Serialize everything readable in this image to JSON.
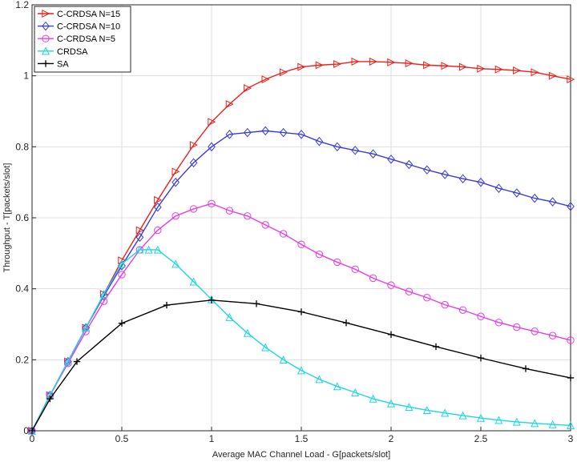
{
  "chart_data": {
    "type": "line",
    "title": "",
    "xlabel": "Average MAC Channel Load - G[packets/slot]",
    "ylabel": "Throughput - T[packets/slot]",
    "xlim": [
      0,
      3
    ],
    "ylim": [
      0,
      1.2
    ],
    "xticks": [
      0,
      0.5,
      1,
      1.5,
      2,
      2.5,
      3
    ],
    "xtick_labels": [
      "0",
      "0.5",
      "1",
      "1.5",
      "2",
      "2.5",
      "3"
    ],
    "yticks": [
      0,
      0.2,
      0.4,
      0.6,
      0.8,
      1,
      1.2
    ],
    "ytick_labels": [
      "0",
      "0.2",
      "0.4",
      "0.6",
      "0.8",
      "1",
      "1.2"
    ],
    "grid": true,
    "legend_position": "top-left",
    "series": [
      {
        "name": "C-CRDSA N=15",
        "color": "#e8211b",
        "marker": "triangle-right",
        "x": [
          0,
          0.1,
          0.2,
          0.3,
          0.4,
          0.5,
          0.6,
          0.7,
          0.8,
          0.9,
          1.0,
          1.1,
          1.2,
          1.3,
          1.4,
          1.5,
          1.6,
          1.7,
          1.8,
          1.9,
          2.0,
          2.1,
          2.2,
          2.3,
          2.4,
          2.5,
          2.6,
          2.7,
          2.8,
          2.9,
          3.0
        ],
        "values": [
          0,
          0.1,
          0.195,
          0.29,
          0.385,
          0.48,
          0.565,
          0.65,
          0.73,
          0.805,
          0.87,
          0.92,
          0.965,
          0.99,
          1.01,
          1.025,
          1.03,
          1.033,
          1.04,
          1.04,
          1.038,
          1.035,
          1.03,
          1.028,
          1.025,
          1.02,
          1.018,
          1.015,
          1.01,
          1.0,
          0.99
        ]
      },
      {
        "name": "C-CRDSA N=10",
        "color": "#3b3bd4",
        "marker": "diamond",
        "x": [
          0,
          0.1,
          0.2,
          0.3,
          0.4,
          0.5,
          0.6,
          0.7,
          0.8,
          0.9,
          1.0,
          1.1,
          1.2,
          1.3,
          1.4,
          1.5,
          1.6,
          1.7,
          1.8,
          1.9,
          2.0,
          2.1,
          2.2,
          2.3,
          2.4,
          2.5,
          2.6,
          2.7,
          2.8,
          2.9,
          3.0
        ],
        "values": [
          0,
          0.1,
          0.195,
          0.29,
          0.38,
          0.465,
          0.545,
          0.63,
          0.7,
          0.755,
          0.8,
          0.835,
          0.84,
          0.845,
          0.84,
          0.835,
          0.815,
          0.8,
          0.79,
          0.78,
          0.765,
          0.75,
          0.735,
          0.722,
          0.71,
          0.7,
          0.683,
          0.67,
          0.655,
          0.645,
          0.632
        ]
      },
      {
        "name": "C-CRDSA N=5",
        "color": "#e83be8",
        "marker": "circle",
        "x": [
          0,
          0.1,
          0.2,
          0.3,
          0.4,
          0.5,
          0.6,
          0.7,
          0.8,
          0.9,
          1.0,
          1.1,
          1.2,
          1.3,
          1.4,
          1.5,
          1.6,
          1.7,
          1.8,
          1.9,
          2.0,
          2.1,
          2.2,
          2.3,
          2.4,
          2.5,
          2.6,
          2.7,
          2.8,
          2.9,
          3.0
        ],
        "values": [
          0,
          0.1,
          0.19,
          0.28,
          0.365,
          0.44,
          0.51,
          0.565,
          0.605,
          0.625,
          0.64,
          0.62,
          0.605,
          0.58,
          0.555,
          0.525,
          0.497,
          0.475,
          0.455,
          0.43,
          0.41,
          0.392,
          0.375,
          0.355,
          0.34,
          0.322,
          0.305,
          0.292,
          0.28,
          0.268,
          0.255
        ]
      },
      {
        "name": "CRDSA",
        "color": "#1dd6e0",
        "marker": "triangle-up",
        "x": [
          0,
          0.1,
          0.2,
          0.3,
          0.4,
          0.5,
          0.6,
          0.65,
          0.7,
          0.8,
          0.9,
          1.0,
          1.1,
          1.2,
          1.3,
          1.4,
          1.5,
          1.6,
          1.7,
          1.8,
          1.9,
          2.0,
          2.1,
          2.2,
          2.3,
          2.4,
          2.5,
          2.6,
          2.7,
          2.8,
          2.9,
          3.0
        ],
        "values": [
          0,
          0.1,
          0.195,
          0.29,
          0.385,
          0.47,
          0.51,
          0.51,
          0.51,
          0.47,
          0.42,
          0.37,
          0.32,
          0.275,
          0.235,
          0.2,
          0.17,
          0.145,
          0.125,
          0.108,
          0.09,
          0.077,
          0.067,
          0.058,
          0.05,
          0.043,
          0.036,
          0.03,
          0.025,
          0.021,
          0.018,
          0.015
        ]
      },
      {
        "name": "SA",
        "color": "#000000",
        "marker": "plus",
        "x": [
          0,
          0.1,
          0.25,
          0.5,
          0.75,
          1.0,
          1.25,
          1.5,
          1.75,
          2.0,
          2.25,
          2.5,
          2.75,
          3.0
        ],
        "values": [
          0,
          0.09,
          0.195,
          0.303,
          0.354,
          0.368,
          0.358,
          0.335,
          0.304,
          0.271,
          0.237,
          0.205,
          0.175,
          0.149
        ]
      }
    ]
  }
}
